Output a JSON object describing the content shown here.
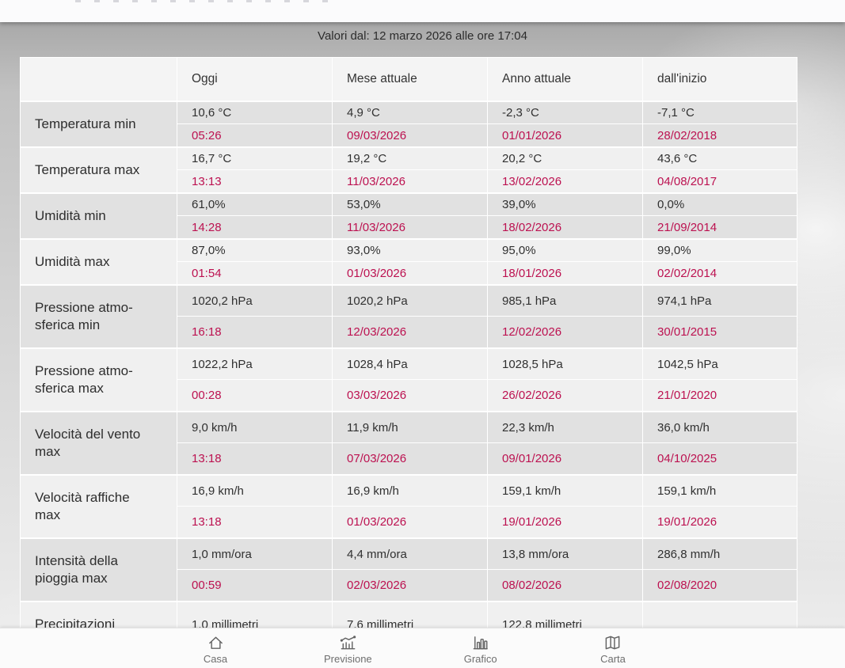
{
  "title": "Valori dal: 12 marzo 2026 alle ore 17:04",
  "colors": {
    "accent_date_red": "#bc1150",
    "row_dark_bg": "#e1e1e1",
    "row_light_bg": "#f0f0f0",
    "header_bg": "#f4f4f4",
    "nav_icon_grey": "#636363"
  },
  "table": {
    "columns": [
      "",
      "Oggi",
      "Mese attuale",
      "Anno attuale",
      "dall'inizio"
    ],
    "rows": [
      {
        "label": "Temperatura min",
        "cells": [
          {
            "value": "10,6 °C",
            "when": "05:26"
          },
          {
            "value": "4,9 °C",
            "when": "09/03/2026"
          },
          {
            "value": "-2,3 °C",
            "when": "01/01/2026"
          },
          {
            "value": "-7,1 °C",
            "when": "28/02/2018"
          }
        ]
      },
      {
        "label": "Temperatura max",
        "cells": [
          {
            "value": "16,7 °C",
            "when": "13:13"
          },
          {
            "value": "19,2 °C",
            "when": "11/03/2026"
          },
          {
            "value": "20,2 °C",
            "when": "13/02/2026"
          },
          {
            "value": "43,6 °C",
            "when": "04/08/2017"
          }
        ]
      },
      {
        "label": "Umidità min",
        "cells": [
          {
            "value": "61,0%",
            "when": "14:28"
          },
          {
            "value": "53,0%",
            "when": "11/03/2026"
          },
          {
            "value": "39,0%",
            "when": "18/02/2026"
          },
          {
            "value": "0,0%",
            "when": "21/09/2014"
          }
        ]
      },
      {
        "label": "Umidità max",
        "cells": [
          {
            "value": "87,0%",
            "when": "01:54"
          },
          {
            "value": "93,0%",
            "when": "01/03/2026"
          },
          {
            "value": "95,0%",
            "when": "18/01/2026"
          },
          {
            "value": "99,0%",
            "when": "02/02/2014"
          }
        ]
      },
      {
        "label": "Pressione atmo-\nsferica min",
        "cells": [
          {
            "value": "1020,2 hPa",
            "when": "16:18"
          },
          {
            "value": "1020,2 hPa",
            "when": "12/03/2026"
          },
          {
            "value": "985,1 hPa",
            "when": "12/02/2026"
          },
          {
            "value": "974,1 hPa",
            "when": "30/01/2015"
          }
        ]
      },
      {
        "label": "Pressione atmo-\nsferica max",
        "cells": [
          {
            "value": "1022,2 hPa",
            "when": "00:28"
          },
          {
            "value": "1028,4 hPa",
            "when": "03/03/2026"
          },
          {
            "value": "1028,5 hPa",
            "when": "26/02/2026"
          },
          {
            "value": "1042,5 hPa",
            "when": "21/01/2020"
          }
        ]
      },
      {
        "label": "Velocità del vento\nmax",
        "cells": [
          {
            "value": "9,0 km/h",
            "when": "13:18"
          },
          {
            "value": "11,9 km/h",
            "when": "07/03/2026"
          },
          {
            "value": "22,3 km/h",
            "when": "09/01/2026"
          },
          {
            "value": "36,0 km/h",
            "when": "04/10/2025"
          }
        ]
      },
      {
        "label": "Velocità raffiche\nmax",
        "cells": [
          {
            "value": "16,9 km/h",
            "when": "13:18"
          },
          {
            "value": "16,9 km/h",
            "when": "01/03/2026"
          },
          {
            "value": "159,1 km/h",
            "when": "19/01/2026"
          },
          {
            "value": "159,1 km/h",
            "when": "19/01/2026"
          }
        ]
      },
      {
        "label": "Intensità della\npioggia max",
        "cells": [
          {
            "value": "1,0 mm/ora",
            "when": "00:59"
          },
          {
            "value": "4,4 mm/ora",
            "when": "02/03/2026"
          },
          {
            "value": "13,8 mm/ora",
            "when": "08/02/2026"
          },
          {
            "value": "286,8 mm/h",
            "when": "02/08/2020"
          }
        ]
      },
      {
        "label": "Precipitazioni",
        "single": true,
        "cells": [
          {
            "value": "1,0 millimetri",
            "when": ""
          },
          {
            "value": "7,6 millimetri",
            "when": ""
          },
          {
            "value": "122,8 millimetri",
            "when": ""
          },
          {
            "value": "",
            "when": ""
          }
        ]
      }
    ]
  },
  "nav": {
    "items": [
      {
        "label": "Casa",
        "icon": "home-icon"
      },
      {
        "label": "Previsione",
        "icon": "forecast-icon"
      },
      {
        "label": "Grafico",
        "icon": "bar-chart-icon"
      },
      {
        "label": "Carta",
        "icon": "map-icon"
      }
    ]
  }
}
